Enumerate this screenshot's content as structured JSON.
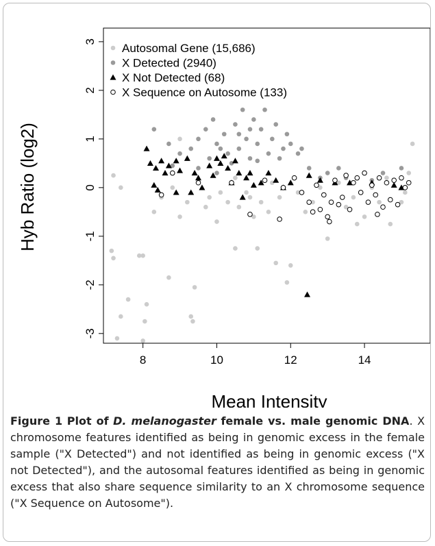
{
  "chart_data": {
    "type": "scatter",
    "xlabel": "Mean Intensity",
    "ylabel": "Hyb Ratio (log2)",
    "xlim": [
      6.93,
      15.78
    ],
    "ylim": [
      -3.2,
      3.28
    ],
    "xticks": [
      8,
      10,
      12,
      14
    ],
    "yticks": [
      -3,
      -2,
      -1,
      0,
      1,
      2,
      3
    ],
    "legend_position": "top-left",
    "series": [
      {
        "name": "Autosomal Gene (15,686)",
        "color": "#cccccc",
        "marker": "circle-filled",
        "x": [
          7.3,
          7.4,
          7.6,
          7.9,
          8.0,
          8.1,
          8.05,
          8.0,
          7.15,
          7.2,
          8.7,
          9.3,
          9.35,
          9.4,
          10.5,
          11.1,
          11.6,
          11.9,
          12.0,
          13.0,
          13.8,
          14.7,
          7.2,
          7.4,
          9.0,
          15.3,
          8.3,
          9.0,
          10.0,
          11.0,
          12.4,
          14.0,
          15.0,
          8.5,
          9.2,
          9.8,
          10.3,
          10.8,
          11.2,
          11.7,
          12.2,
          12.8,
          13.3,
          13.7,
          14.2,
          14.6,
          15.1,
          9.5,
          10.5,
          11.5,
          8.8,
          9.7,
          10.6,
          11.4,
          12.6,
          13.5,
          14.4,
          15.2,
          10.1,
          10.9
        ],
        "values": [
          -3.1,
          -2.65,
          -2.3,
          -1.4,
          -1.4,
          -2.4,
          -2.75,
          -3.15,
          -1.3,
          -1.45,
          -1.85,
          -2.65,
          -2.75,
          -2.05,
          -1.25,
          -1.25,
          -1.55,
          -1.95,
          -1.6,
          -1.05,
          -0.75,
          -0.75,
          0.25,
          0.0,
          1.0,
          0.9,
          -0.5,
          -0.6,
          -0.7,
          -0.6,
          -0.5,
          -0.6,
          -0.3,
          -0.2,
          -0.3,
          -0.2,
          -0.3,
          -0.1,
          -0.3,
          -0.2,
          -0.1,
          0.0,
          0.1,
          -0.2,
          0.0,
          0.2,
          -0.1,
          0.1,
          0.2,
          0.1,
          0.0,
          -0.4,
          -0.4,
          -0.5,
          -0.3,
          -0.4,
          -0.3,
          0.3,
          -0.1,
          -0.2
        ]
      },
      {
        "name": "X Detected (2940)",
        "color": "#9a9a9a",
        "marker": "circle-filled",
        "x": [
          8.3,
          8.7,
          9.0,
          9.3,
          9.5,
          9.7,
          9.8,
          10.0,
          10.2,
          10.3,
          10.5,
          10.6,
          10.8,
          10.9,
          11.0,
          11.1,
          11.2,
          11.4,
          11.5,
          11.6,
          11.8,
          11.9,
          12.0,
          12.2,
          12.3,
          9.9,
          10.4,
          11.3,
          10.7,
          10.0,
          9.5,
          12.5,
          13.0,
          13.5,
          14.0,
          14.5,
          15.0,
          12.8,
          13.3,
          14.2,
          8.8,
          10.6,
          11.7,
          10.1,
          10.9,
          11.1
        ],
        "values": [
          1.2,
          0.9,
          0.7,
          0.8,
          1.0,
          1.2,
          0.6,
          0.9,
          1.1,
          0.7,
          1.3,
          0.8,
          1.0,
          0.6,
          1.4,
          0.9,
          1.2,
          0.7,
          1.0,
          1.3,
          0.8,
          1.1,
          0.9,
          0.7,
          0.8,
          1.4,
          0.5,
          1.6,
          1.6,
          0.3,
          0.4,
          0.4,
          0.3,
          0.2,
          0.3,
          0.3,
          0.4,
          0.2,
          0.4,
          0.15,
          0.45,
          1.1,
          0.6,
          0.8,
          1.2,
          0.55
        ]
      },
      {
        "name": "X Not Detected (68)",
        "color": "#000000",
        "marker": "triangle",
        "x": [
          8.1,
          8.2,
          8.35,
          8.5,
          8.3,
          8.6,
          8.7,
          8.9,
          9.0,
          9.2,
          9.4,
          9.5,
          9.6,
          9.8,
          9.9,
          10.0,
          10.1,
          10.2,
          10.3,
          10.4,
          10.5,
          10.6,
          10.8,
          11.0,
          11.2,
          11.4,
          11.6,
          11.8,
          12.0,
          12.5,
          12.8,
          13.2,
          13.6,
          14.2,
          14.8,
          15.0,
          12.45,
          9.3,
          10.7,
          8.4,
          8.9,
          10.9
        ],
        "values": [
          0.8,
          0.5,
          0.4,
          0.55,
          0.05,
          0.3,
          0.45,
          0.55,
          0.35,
          0.6,
          0.3,
          0.2,
          0.0,
          0.45,
          0.25,
          0.6,
          0.5,
          0.65,
          0.4,
          0.1,
          0.55,
          0.3,
          0.2,
          0.05,
          0.1,
          0.3,
          0.15,
          0.0,
          0.1,
          0.25,
          0.15,
          0.1,
          0.1,
          0.1,
          0.05,
          0.0,
          -2.2,
          -0.1,
          -0.2,
          -0.05,
          -0.1,
          0.3
        ]
      },
      {
        "name": "X Sequence on Autosome (133)",
        "color": "#000000",
        "marker": "circle-open",
        "x": [
          8.5,
          8.8,
          9.5,
          10.4,
          10.9,
          11.3,
          11.7,
          11.8,
          12.1,
          12.3,
          12.5,
          12.7,
          12.8,
          12.9,
          13.0,
          13.1,
          13.2,
          13.3,
          13.4,
          13.5,
          13.6,
          13.7,
          13.8,
          13.9,
          14.0,
          14.1,
          14.2,
          14.3,
          14.4,
          14.5,
          14.6,
          14.7,
          14.8,
          14.9,
          15.0,
          15.1,
          15.2,
          12.6,
          13.05,
          14.35
        ],
        "values": [
          -0.15,
          0.3,
          0.1,
          0.1,
          -0.55,
          0.15,
          -0.65,
          0.0,
          0.2,
          -0.1,
          -0.3,
          0.05,
          -0.45,
          -0.15,
          -0.6,
          -0.3,
          0.15,
          -0.35,
          -0.2,
          0.25,
          -0.45,
          0.1,
          0.2,
          -0.1,
          0.3,
          -0.3,
          0.05,
          -0.15,
          0.2,
          -0.4,
          0.1,
          -0.25,
          0.15,
          -0.35,
          0.2,
          0.0,
          0.1,
          -0.5,
          -0.7,
          -0.55
        ]
      }
    ]
  },
  "caption": {
    "label": "Figure 1",
    "title_prefix": "Plot of",
    "title_italic": "D. melanogaster",
    "title_suffix": "female vs. male genomic DNA",
    "body": "X chromosome features identified as being in genomic excess in the female sample (\"X Detected\") and not identified as being in genomic excess (\"X not Detected\"), and the autosomal features identified as being in genomic excess that also share sequence similarity to an X chromosome sequence (\"X Sequence on Autosome\")."
  }
}
